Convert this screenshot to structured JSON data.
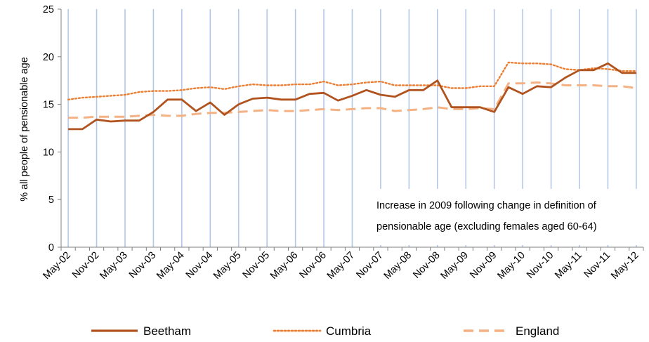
{
  "chart_data": {
    "type": "line",
    "title": "",
    "xlabel": "",
    "ylabel": "% all people of pensionable age",
    "ylim": [
      0,
      25
    ],
    "yticks": [
      "0",
      "5",
      "10",
      "15",
      "20",
      "25"
    ],
    "grid": "vertical",
    "legend_position": "bottom",
    "x_tick_labels": [
      "May-02",
      "Nov-02",
      "May-03",
      "Nov-03",
      "May-04",
      "Nov-04",
      "May-05",
      "Nov-05",
      "May-06",
      "Nov-06",
      "May-07",
      "Nov-07",
      "May-08",
      "Nov-08",
      "May-09",
      "Nov-09",
      "May-10",
      "Nov-10",
      "May-11",
      "Nov-11",
      "May-12"
    ],
    "x": [
      "May-02",
      "Aug-02",
      "Nov-02",
      "Feb-03",
      "May-03",
      "Aug-03",
      "Nov-03",
      "Feb-04",
      "May-04",
      "Aug-04",
      "Nov-04",
      "Feb-05",
      "May-05",
      "Aug-05",
      "Nov-05",
      "Feb-06",
      "May-06",
      "Aug-06",
      "Nov-06",
      "Feb-07",
      "May-07",
      "Aug-07",
      "Nov-07",
      "Feb-08",
      "May-08",
      "Aug-08",
      "Nov-08",
      "Feb-09",
      "May-09",
      "Aug-09",
      "Nov-09",
      "Feb-10",
      "May-10",
      "Aug-10",
      "Nov-10",
      "Feb-11",
      "May-11",
      "Aug-11",
      "Nov-11",
      "Feb-12",
      "May-12"
    ],
    "annotation": [
      "Increase in 2009 following change in definition of",
      "pensionable age (excluding females aged 60-64)"
    ],
    "series": [
      {
        "name": "Beetham",
        "style": "solid",
        "color": "#b0531e",
        "values": [
          12.4,
          12.4,
          13.4,
          13.2,
          13.3,
          13.3,
          14.2,
          15.5,
          15.5,
          14.3,
          15.2,
          13.9,
          15.0,
          15.6,
          15.7,
          15.5,
          15.5,
          16.1,
          16.2,
          15.4,
          15.9,
          16.5,
          16.0,
          15.8,
          16.5,
          16.5,
          17.5,
          14.7,
          14.7,
          14.7,
          14.2,
          16.8,
          16.1,
          16.9,
          16.8,
          17.8,
          18.6,
          18.6,
          19.3,
          18.3,
          18.3
        ]
      },
      {
        "name": "Cumbria",
        "style": "dotted",
        "color": "#ed7d31",
        "values": [
          15.5,
          15.7,
          15.8,
          15.9,
          16.0,
          16.3,
          16.4,
          16.4,
          16.5,
          16.7,
          16.8,
          16.6,
          16.9,
          17.1,
          17.0,
          17.0,
          17.1,
          17.1,
          17.4,
          17.0,
          17.1,
          17.3,
          17.4,
          17.0,
          17.0,
          17.0,
          17.0,
          16.7,
          16.7,
          16.9,
          16.9,
          19.4,
          19.3,
          19.3,
          19.2,
          18.7,
          18.6,
          18.8,
          18.7,
          18.5,
          18.5
        ]
      },
      {
        "name": "England",
        "style": "dashed",
        "color": "#f4b183",
        "values": [
          13.6,
          13.6,
          13.7,
          13.7,
          13.7,
          13.8,
          13.9,
          13.8,
          13.8,
          14.0,
          14.1,
          14.1,
          14.2,
          14.3,
          14.4,
          14.3,
          14.3,
          14.4,
          14.5,
          14.4,
          14.5,
          14.6,
          14.6,
          14.3,
          14.4,
          14.5,
          14.7,
          14.5,
          14.5,
          14.6,
          14.5,
          17.2,
          17.2,
          17.3,
          17.2,
          17.0,
          17.0,
          17.0,
          16.9,
          16.9,
          16.7
        ]
      }
    ]
  }
}
